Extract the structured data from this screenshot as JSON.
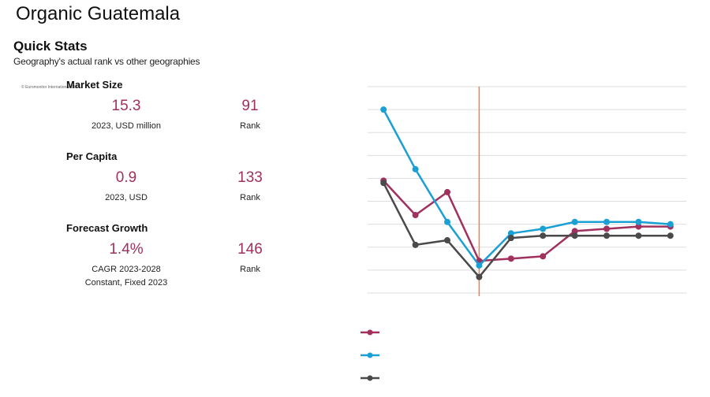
{
  "title": "Organic Guatemala",
  "quick_stats": {
    "heading": "Quick Stats",
    "subheading": "Geography's actual rank vs other geographies",
    "copyright": "© Euromonitor International 2024",
    "sections": [
      {
        "title": "Market Size",
        "value": "15.3",
        "value_caption": "2023, USD million",
        "rank": "91",
        "rank_caption": "Rank"
      },
      {
        "title": "Per Capita",
        "value": "0.9",
        "value_caption": "2023,  USD",
        "rank": "133",
        "rank_caption": "Rank"
      },
      {
        "title": "Forecast Growth",
        "value": "1.4%",
        "value_caption": "CAGR 2023-2028",
        "value_caption_2": "Constant, Fixed 2023",
        "rank": "146",
        "rank_caption": "Rank"
      }
    ]
  },
  "colors": {
    "accent": "#a0305e",
    "series1": "#a0305e",
    "series2": "#1aa0d4",
    "series3": "#4a4a4a",
    "divider": "#f0804a",
    "grid": "#dddddd"
  },
  "chart_data": {
    "type": "line",
    "title": "",
    "xlabel": "",
    "ylabel": "",
    "x": [
      1,
      2,
      3,
      4,
      5,
      6,
      7,
      8,
      9,
      10
    ],
    "ylim": [
      0,
      9
    ],
    "grid": true,
    "divider_after_x": 4,
    "legend_position": "bottom",
    "series": [
      {
        "name": "",
        "color": "#a0305e",
        "values": [
          4.9,
          3.4,
          4.4,
          1.4,
          1.5,
          1.6,
          2.7,
          2.8,
          2.9,
          2.9
        ]
      },
      {
        "name": "",
        "color": "#1aa0d4",
        "values": [
          8.0,
          5.4,
          3.1,
          1.2,
          2.6,
          2.8,
          3.1,
          3.1,
          3.1,
          3.0
        ]
      },
      {
        "name": "",
        "color": "#4a4a4a",
        "values": [
          4.8,
          2.1,
          2.3,
          0.7,
          2.4,
          2.5,
          2.5,
          2.5,
          2.5,
          2.5
        ]
      }
    ]
  }
}
